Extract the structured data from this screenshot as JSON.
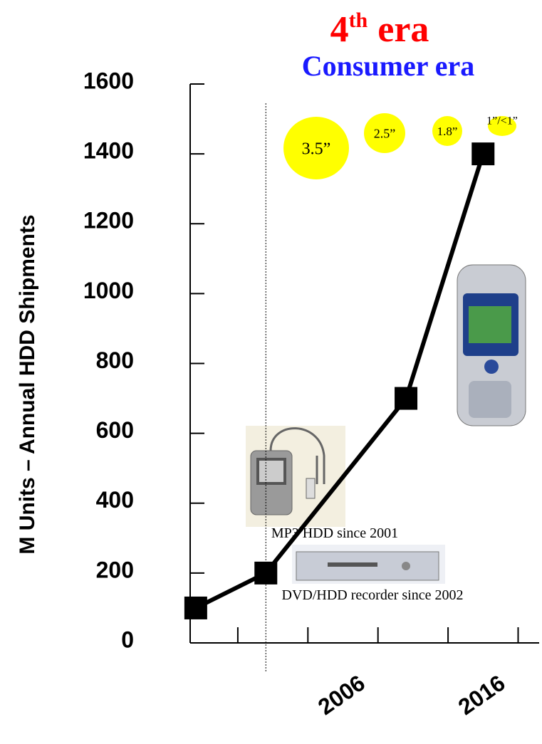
{
  "chart_data": {
    "type": "line",
    "title": [
      "4",
      "th",
      "era"
    ],
    "subtitle": "Consumer era",
    "y_label": "M Units – Annual HDD Shipments",
    "ylim": [
      0,
      1600
    ],
    "yticks": [
      0,
      200,
      400,
      600,
      800,
      1000,
      1200,
      1400,
      1600
    ],
    "xlim": [
      1992.6,
      2017.5
    ],
    "xticks": [
      {
        "value": 1996,
        "label": null
      },
      {
        "value": 2001,
        "label": null
      },
      2006,
      {
        "value": 2011,
        "label": null
      },
      2016
    ],
    "reference_line": {
      "x": 1998
    },
    "series": [
      {
        "color": "#000000",
        "x": [
          1993,
          1998,
          2008,
          2013.5
        ],
        "values": [
          100,
          200,
          700,
          1400
        ]
      }
    ],
    "bubbles": [
      "3.5”",
      "2.5”",
      "1.8”",
      "1”/<1”"
    ],
    "annotations": [
      "MP3 HDD since 2001",
      "DVD/HDD recorder since 2002"
    ]
  }
}
